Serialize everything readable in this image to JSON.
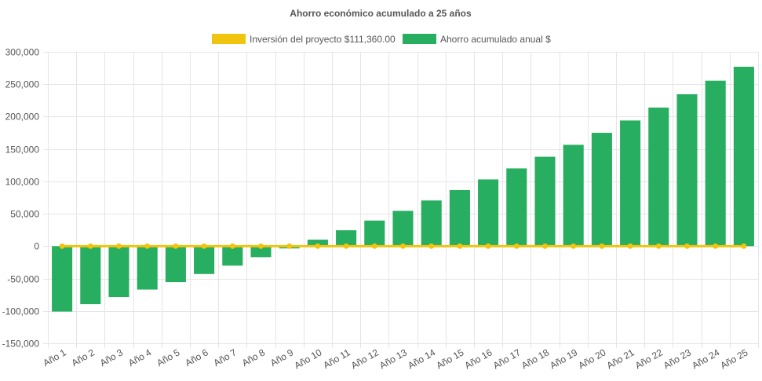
{
  "chart_data": {
    "type": "bar",
    "title": "Ahorro económico acumulado a 25 años",
    "categories": [
      "Año 1",
      "Año 2",
      "Año 3",
      "Año 4",
      "Año 5",
      "Año 6",
      "Año 7",
      "Año 8",
      "Año 9",
      "Año 10",
      "Año 11",
      "Año 12",
      "Año 13",
      "Año 14",
      "Año 15",
      "Año 16",
      "Año 17",
      "Año 18",
      "Año 19",
      "Año 20",
      "Año 21",
      "Año 22",
      "Año 23",
      "Año 24",
      "Año 25"
    ],
    "series": [
      {
        "name": "Inversión del proyecto $111,360.00",
        "type": "line",
        "color": "#f1c40f",
        "values": [
          0,
          0,
          0,
          0,
          0,
          0,
          0,
          0,
          0,
          0,
          0,
          0,
          0,
          0,
          0,
          0,
          0,
          0,
          0,
          0,
          0,
          0,
          0,
          0,
          0
        ]
      },
      {
        "name": "Ahorro acumulado anual $",
        "type": "bar",
        "color": "#27ae60",
        "values": [
          -101000,
          -89500,
          -78500,
          -67000,
          -55500,
          -43000,
          -30000,
          -17000,
          -3500,
          10000,
          24500,
          39500,
          54500,
          70500,
          86500,
          103000,
          120000,
          138000,
          156500,
          175000,
          194000,
          214000,
          234500,
          255500,
          277000
        ]
      }
    ],
    "ylim": [
      -150000,
      300000
    ],
    "yticks": [
      300000,
      250000,
      200000,
      150000,
      100000,
      50000,
      0,
      -50000,
      -100000,
      -150000
    ],
    "ytick_labels": [
      "300,000",
      "250,000",
      "200,000",
      "150,000",
      "100,000",
      "50,000",
      "0",
      "-50,000",
      "-100,000",
      "-150,000"
    ],
    "grid": true,
    "legend_position": "top"
  }
}
